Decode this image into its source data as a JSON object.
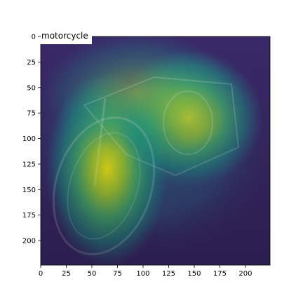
{
  "chart_data": {
    "type": "heatmap",
    "title": "motorcycle",
    "xlabel": "",
    "ylabel": "",
    "xlim": [
      0,
      224
    ],
    "ylim": [
      224,
      0
    ],
    "x_ticks": [
      0,
      25,
      50,
      75,
      100,
      125,
      150,
      175,
      200
    ],
    "y_ticks": [
      0,
      25,
      50,
      75,
      100,
      125,
      150,
      175,
      200
    ],
    "x_tick_labels": [
      "0",
      "25",
      "50",
      "75",
      "100",
      "125",
      "150",
      "175",
      "200"
    ],
    "y_tick_labels": [
      "0",
      "25",
      "50",
      "75",
      "100",
      "125",
      "150",
      "175",
      "200"
    ],
    "grid": false,
    "colormap": "viridis",
    "background_photo": "motorcycle",
    "hotspots": [
      {
        "x": 65,
        "y": 130,
        "sx": 25,
        "sy": 40,
        "value": 1.0
      },
      {
        "x": 145,
        "y": 80,
        "sx": 30,
        "sy": 28,
        "value": 0.9
      },
      {
        "x": 95,
        "y": 55,
        "sx": 40,
        "sy": 25,
        "value": 0.35
      }
    ]
  }
}
